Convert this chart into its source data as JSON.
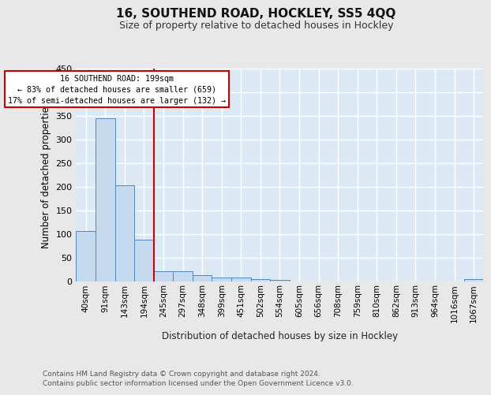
{
  "title": "16, SOUTHEND ROAD, HOCKLEY, SS5 4QQ",
  "subtitle": "Size of property relative to detached houses in Hockley",
  "xlabel": "Distribution of detached houses by size in Hockley",
  "ylabel": "Number of detached properties",
  "fig_facecolor": "#e8e8e8",
  "plot_facecolor": "#dce9f5",
  "bar_color": "#c5d9ef",
  "bar_edge_color": "#5588bb",
  "grid_color": "#ffffff",
  "bins": [
    "40sqm",
    "91sqm",
    "143sqm",
    "194sqm",
    "245sqm",
    "297sqm",
    "348sqm",
    "399sqm",
    "451sqm",
    "502sqm",
    "554sqm",
    "605sqm",
    "656sqm",
    "708sqm",
    "759sqm",
    "810sqm",
    "862sqm",
    "913sqm",
    "964sqm",
    "1016sqm",
    "1067sqm"
  ],
  "values": [
    107,
    345,
    203,
    88,
    22,
    22,
    14,
    8,
    8,
    5,
    3,
    0,
    0,
    0,
    0,
    0,
    0,
    0,
    0,
    0,
    5
  ],
  "property_bin_index": 3,
  "vline_color": "#cc0000",
  "annotation_line1": "16 SOUTHEND ROAD: 199sqm",
  "annotation_line2": "← 83% of detached houses are smaller (659)",
  "annotation_line3": "17% of semi-detached houses are larger (132) →",
  "annotation_box_facecolor": "#ffffff",
  "annotation_box_edgecolor": "#cc0000",
  "ylim": [
    0,
    450
  ],
  "yticks": [
    0,
    50,
    100,
    150,
    200,
    250,
    300,
    350,
    400,
    450
  ],
  "footer1": "Contains HM Land Registry data © Crown copyright and database right 2024.",
  "footer2": "Contains public sector information licensed under the Open Government Licence v3.0."
}
